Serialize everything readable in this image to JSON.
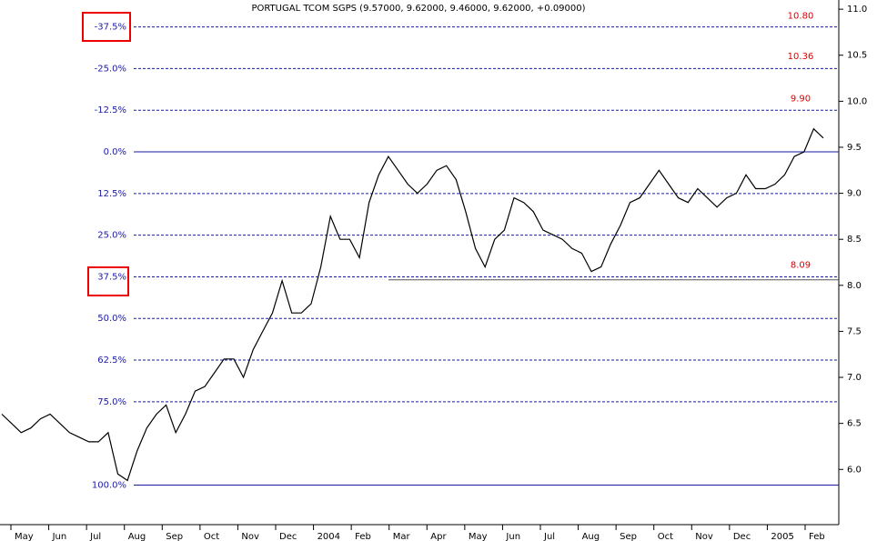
{
  "chart_data": {
    "type": "line",
    "title": "PORTUGAL TCOM SGPS (9.57000, 9.62000, 9.46000, 9.62000, +0.09000)",
    "months": [
      "May",
      "Jun",
      "Jul",
      "Aug",
      "Sep",
      "Oct",
      "Nov",
      "Dec",
      "2004",
      "Feb",
      "Mar",
      "Apr",
      "May",
      "Jun",
      "Jul",
      "Aug",
      "Sep",
      "Oct",
      "Nov",
      "Dec",
      "2005",
      "Feb"
    ],
    "series": [
      {
        "color": "#000000",
        "values": [
          6.6,
          6.5,
          6.4,
          6.45,
          6.55,
          6.6,
          6.5,
          6.4,
          6.35,
          6.3,
          6.3,
          6.4,
          5.95,
          5.88,
          6.2,
          6.45,
          6.6,
          6.7,
          6.4,
          6.6,
          6.85,
          6.9,
          7.05,
          7.2,
          7.2,
          7.0,
          7.3,
          7.5,
          7.7,
          8.05,
          7.7,
          7.7,
          7.8,
          8.2,
          8.75,
          8.5,
          8.5,
          8.3,
          8.9,
          9.2,
          9.4,
          9.25,
          9.1,
          9.0,
          9.1,
          9.25,
          9.3,
          9.15,
          8.8,
          8.4,
          8.2,
          8.5,
          8.6,
          8.95,
          8.9,
          8.8,
          8.6,
          8.55,
          8.5,
          8.4,
          8.35,
          8.15,
          8.2,
          8.45,
          8.65,
          8.9,
          8.95,
          9.1,
          9.25,
          9.1,
          8.95,
          8.9,
          9.05,
          8.95,
          8.85,
          8.95,
          9.0,
          9.2,
          9.05,
          9.05,
          9.1,
          9.2,
          9.4,
          9.45,
          9.7,
          9.6
        ]
      }
    ],
    "ylim": [
      5.4,
      11.1
    ],
    "yticks": [
      {
        "value": 6.0,
        "label": "6.0"
      },
      {
        "value": 6.5,
        "label": "6.5"
      },
      {
        "value": 7.0,
        "label": "7.0"
      },
      {
        "value": 7.5,
        "label": "7.5"
      },
      {
        "value": 8.0,
        "label": "8.0"
      },
      {
        "value": 8.5,
        "label": "8.5"
      },
      {
        "value": 9.0,
        "label": "9.0"
      },
      {
        "value": 9.5,
        "label": "9.5"
      },
      {
        "value": 10.0,
        "label": "10.0"
      },
      {
        "value": 10.5,
        "label": "10.5"
      },
      {
        "value": 11.0,
        "label": "11.0"
      }
    ],
    "fib_range": [
      9.45,
      5.83
    ],
    "fib_levels": [
      {
        "value": -37.5,
        "label": "-37.5%"
      },
      {
        "value": -25,
        "label": "-25.0%"
      },
      {
        "value": -12.5,
        "label": "-12.5%"
      },
      {
        "value": 0,
        "label": "0.0%"
      },
      {
        "value": 12.5,
        "label": "12.5%"
      },
      {
        "value": 25,
        "label": "25.0%"
      },
      {
        "value": 37.5,
        "label": "37.5%"
      },
      {
        "value": 50,
        "label": "50.0%"
      },
      {
        "value": 62.5,
        "label": "62.5%"
      },
      {
        "value": 75,
        "label": "75.0%"
      },
      {
        "value": 100,
        "label": "100.0%"
      }
    ],
    "annotations": [
      {
        "value": 10.8,
        "label": "10.80"
      },
      {
        "value": 10.36,
        "label": "10.36"
      },
      {
        "value": 9.9,
        "label": "9.90"
      },
      {
        "value": 8.09,
        "label": "8.09"
      }
    ],
    "support": 8.06
  }
}
